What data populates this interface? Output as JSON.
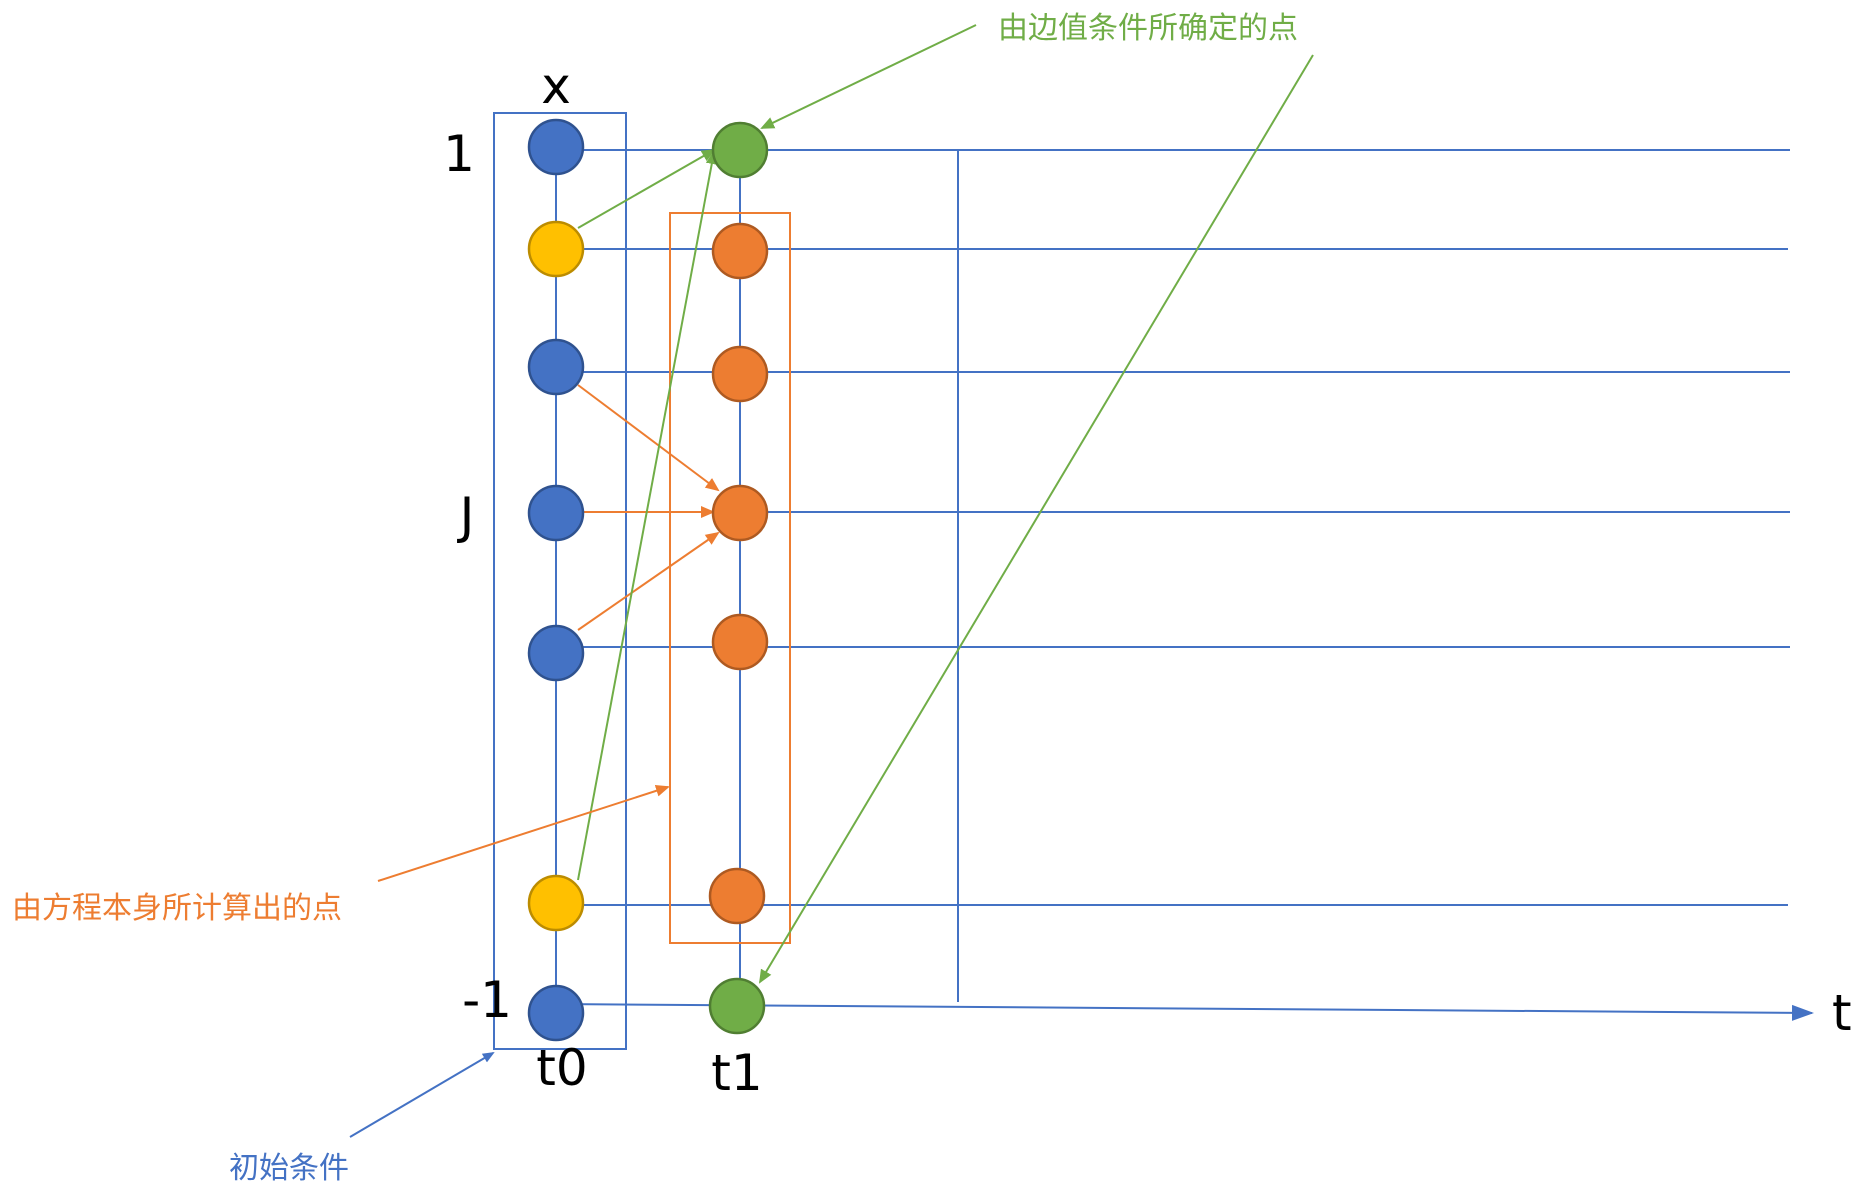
{
  "labels": {
    "x_axis": "x",
    "t_axis": "t",
    "y_top": "1",
    "y_mid": "J",
    "y_bottom": "-1",
    "col0": "t0",
    "col1": "t1"
  },
  "annotations": {
    "boundary": "由边值条件所确定的点",
    "equation": "由方程本身所计算出的点",
    "initial": "初始条件"
  },
  "colors": {
    "line_blue": "#4472C4",
    "node_blue": "#4472C4",
    "node_yellow": "#FFC000",
    "node_orange": "#ED7D31",
    "node_green": "#70AD47",
    "note_green": "#70AD47",
    "note_orange": "#ED7D31",
    "note_blue": "#4472C4"
  },
  "grid": {
    "row_count": 8,
    "column_t0_nodes": [
      "blue",
      "yellow",
      "blue",
      "blue",
      "blue",
      "yellow",
      "blue"
    ],
    "column_t1_nodes": [
      "green",
      "orange",
      "orange",
      "orange",
      "orange",
      "orange",
      "green"
    ]
  }
}
